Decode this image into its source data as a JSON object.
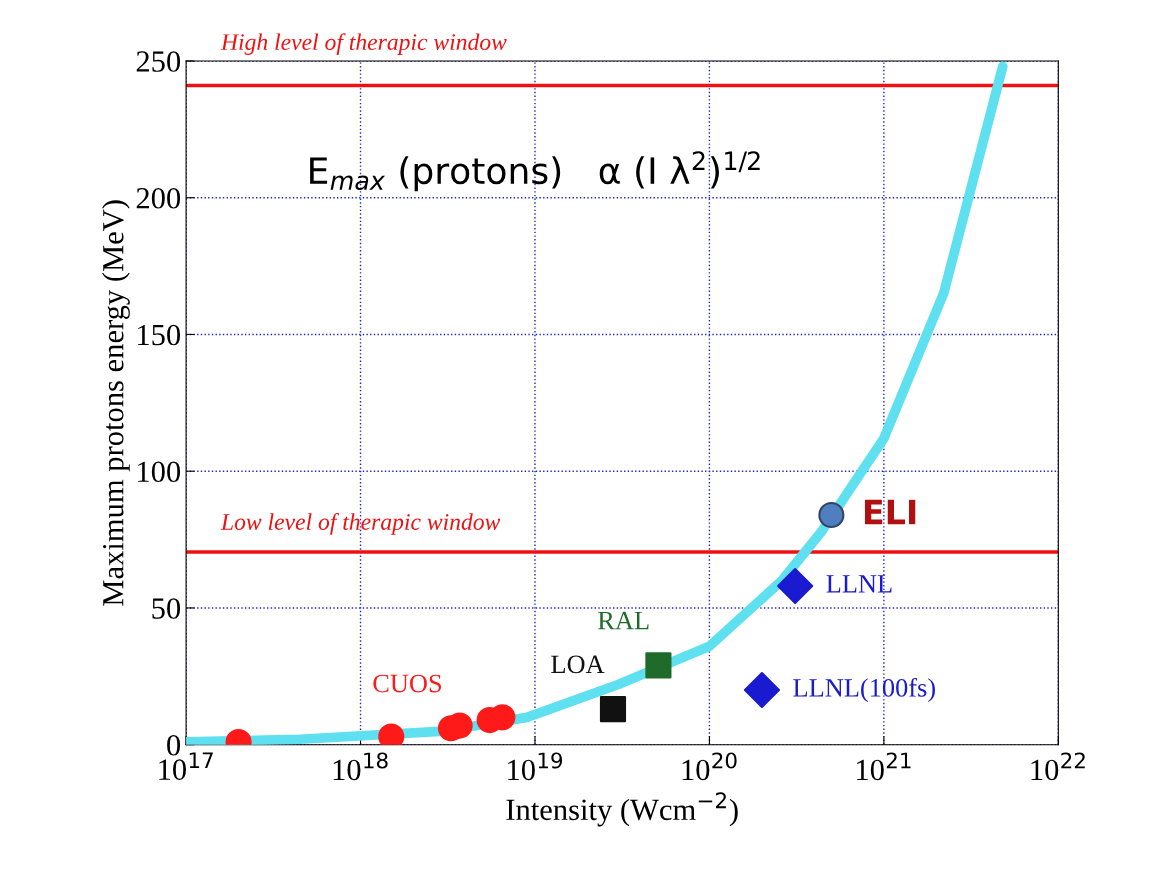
{
  "chart_data": {
    "type": "line",
    "xlabel": "Intensity (Wcm$^{−2}$)",
    "ylabel": "Maximum protons energy (MeV)",
    "log": "x",
    "xlim": [
      1e+17,
      1e+22
    ],
    "xticks": [
      {
        "value": 1e+17,
        "label": "10$^{17}$"
      },
      {
        "value": 1e+18,
        "label": "10$^{18}$"
      },
      {
        "value": 1e+19,
        "label": "10$^{19}$"
      },
      {
        "value": 1e+20,
        "label": "10$^{20}$"
      },
      {
        "value": 1e+21,
        "label": "10$^{21}$"
      },
      {
        "value": 1e+22,
        "label": "10$^{22}$"
      }
    ],
    "ylim": [
      0,
      250
    ],
    "yticks": [
      0,
      50,
      100,
      150,
      200,
      250
    ],
    "grid": true,
    "legend": false,
    "series": [
      {
        "color": "#5ee0f0",
        "marker": "none",
        "x": [
          1e+17,
          4.5e+17,
          3e+18,
          9e+18,
          3e+19,
          1e+20,
          2.6e+20,
          4.4e+20,
          1e+21,
          2.2e+21,
          4.8e+21
        ],
        "values": [
          1,
          2,
          5,
          10,
          22,
          36,
          60,
          78,
          112,
          165,
          248
        ]
      },
      {
        "type": "scatter",
        "name": "CUOS",
        "color": "#ff1a1a",
        "marker": "circle",
        "x": [
          2e+17,
          1.5e+18,
          3.3e+18,
          3.7e+18,
          5.5e+18,
          6.5e+18
        ],
        "values": [
          1,
          3,
          6,
          7,
          9,
          10
        ]
      },
      {
        "type": "scatter",
        "name": "LOA",
        "color": "#111111",
        "marker": "square",
        "x": [
          2.8e+19
        ],
        "values": [
          13
        ]
      },
      {
        "type": "scatter",
        "name": "RAL",
        "color": "#1f6b2a",
        "marker": "square",
        "x": [
          5.1e+19
        ],
        "values": [
          29
        ]
      },
      {
        "type": "scatter",
        "name": "LLNL",
        "color": "#1a1ad0",
        "marker": "diamond",
        "x": [
          3.1e+20
        ],
        "values": [
          58
        ]
      },
      {
        "type": "scatter",
        "name": "LLNL(100fs)",
        "color": "#1a1ad0",
        "marker": "diamond",
        "x": [
          2e+20
        ],
        "values": [
          20
        ]
      },
      {
        "type": "scatter",
        "name": "ELI",
        "color": "#4f7fc0",
        "marker": "circle",
        "x": [
          5e+20
        ],
        "values": [
          84
        ]
      }
    ],
    "ref_lines": [
      {
        "axis": "y",
        "value": 241,
        "label": "High level of therapic window",
        "color": "#ee1111"
      },
      {
        "axis": "y",
        "value": 70.5,
        "label": "Low level of therapic window",
        "color": "#ee1111"
      }
    ],
    "annotations": [
      "E$_{max}$ (protons)   α (I λ$^{2}$)$^{1/2}$"
    ]
  }
}
